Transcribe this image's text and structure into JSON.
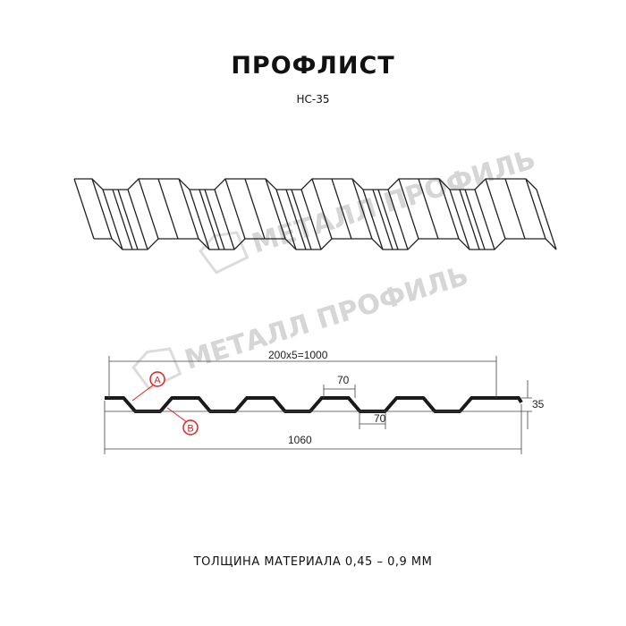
{
  "header": {
    "title": "ПРОФЛИСТ",
    "subtitle": "НС-35"
  },
  "watermark": {
    "text": "МЕТАЛЛ ПРОФИЛЬ"
  },
  "profile": {
    "dimension_pitch": "200x5=1000",
    "dimension_top_flat": "70",
    "dimension_bottom_flat": "70",
    "dimension_height": "35",
    "dimension_total_width": "1060",
    "callout_a": "A",
    "callout_b": "B"
  },
  "footer": {
    "text": "ТОЛЩИНА МАТЕРИАЛА 0,45 – 0,9 ММ"
  },
  "colors": {
    "profile": "#1a1a1a",
    "callout": "#e02020",
    "watermark": "#d6d6d6"
  }
}
